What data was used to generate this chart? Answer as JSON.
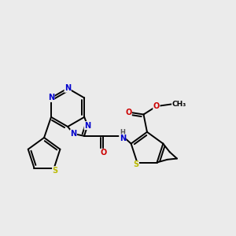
{
  "bg_color": "#ebebeb",
  "atom_colors": {
    "C": "#000000",
    "N": "#0000cc",
    "O": "#cc0000",
    "S": "#bbbb00",
    "H": "#555555"
  },
  "bond_color": "#000000",
  "bond_width": 1.4
}
